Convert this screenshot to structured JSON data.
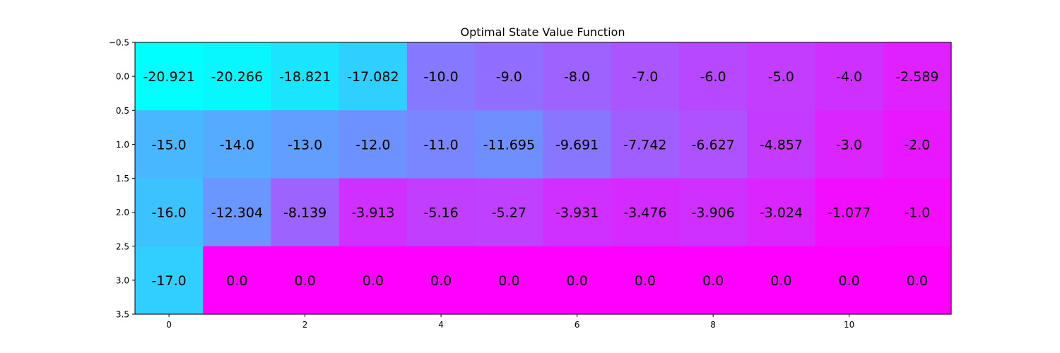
{
  "chart_data": {
    "type": "heatmap",
    "title": "Optimal State Value Function",
    "xlabel": "",
    "ylabel": "",
    "colormap": "cool",
    "color_low": "#00ffff",
    "color_high": "#ff00ff",
    "vmin": -20.921,
    "vmax": 0.0,
    "xlim": [
      -0.5,
      11.5
    ],
    "ylim": [
      3.5,
      -0.5
    ],
    "x_ticks": [
      0,
      2,
      4,
      6,
      8,
      10
    ],
    "x_tick_labels": [
      "0",
      "2",
      "4",
      "6",
      "8",
      "10"
    ],
    "y_ticks": [
      -0.5,
      0.0,
      0.5,
      1.0,
      1.5,
      2.0,
      2.5,
      3.0,
      3.5
    ],
    "y_tick_labels": [
      "−0.5",
      "0.0",
      "0.5",
      "1.0",
      "1.5",
      "2.0",
      "2.5",
      "3.0",
      "3.5"
    ],
    "grid": false,
    "legend": "none",
    "values": [
      [
        -20.921,
        -20.266,
        -18.821,
        -17.082,
        -10.0,
        -9.0,
        -8.0,
        -7.0,
        -6.0,
        -5.0,
        -4.0,
        -2.589
      ],
      [
        -15.0,
        -14.0,
        -13.0,
        -12.0,
        -11.0,
        -11.695,
        -9.691,
        -7.742,
        -6.627,
        -4.857,
        -3.0,
        -2.0
      ],
      [
        -16.0,
        -12.304,
        -8.139,
        -3.913,
        -5.16,
        -5.27,
        -3.931,
        -3.476,
        -3.906,
        -3.024,
        -1.077,
        -1.0
      ],
      [
        -17.0,
        0.0,
        0.0,
        0.0,
        0.0,
        0.0,
        0.0,
        0.0,
        0.0,
        0.0,
        0.0,
        0.0
      ]
    ],
    "cell_labels": [
      [
        "-20.921",
        "-20.266",
        "-18.821",
        "-17.082",
        "-10.0",
        "-9.0",
        "-8.0",
        "-7.0",
        "-6.0",
        "-5.0",
        "-4.0",
        "-2.589"
      ],
      [
        "-15.0",
        "-14.0",
        "-13.0",
        "-12.0",
        "-11.0",
        "-11.695",
        "-9.691",
        "-7.742",
        "-6.627",
        "-4.857",
        "-3.0",
        "-2.0"
      ],
      [
        "-16.0",
        "-12.304",
        "-8.139",
        "-3.913",
        "-5.16",
        "-5.27",
        "-3.931",
        "-3.476",
        "-3.906",
        "-3.024",
        "-1.077",
        "-1.0"
      ],
      [
        "-17.0",
        "0.0",
        "0.0",
        "0.0",
        "0.0",
        "0.0",
        "0.0",
        "0.0",
        "0.0",
        "0.0",
        "0.0",
        "0.0"
      ]
    ]
  }
}
